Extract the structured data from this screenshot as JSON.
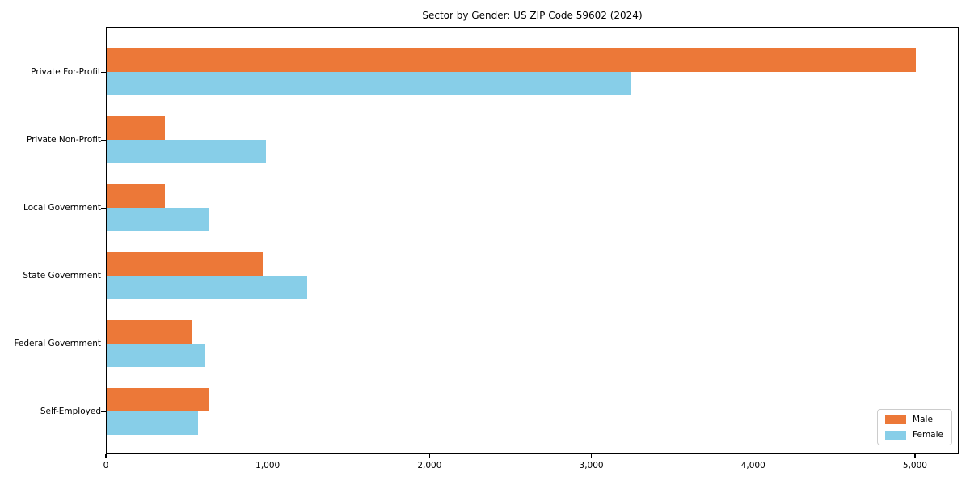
{
  "chart_data": {
    "type": "bar",
    "orientation": "horizontal",
    "title": "Sector by Gender: US ZIP Code 59602 (2024)",
    "categories": [
      "Private For-Profit",
      "Private Non-Profit",
      "Local Government",
      "State Government",
      "Federal Government",
      "Self-Employed"
    ],
    "series": [
      {
        "name": "Male",
        "color": "#EC7838",
        "values": [
          5010,
          360,
          360,
          965,
          530,
          630
        ]
      },
      {
        "name": "Female",
        "color": "#87CEE8",
        "values": [
          3250,
          985,
          630,
          1240,
          610,
          565
        ]
      }
    ],
    "xlabel": "",
    "ylabel": "",
    "xlim": [
      0,
      5270
    ],
    "xticks": [
      0,
      1000,
      2000,
      3000,
      4000,
      5000
    ],
    "xtick_labels": [
      "0",
      "1,000",
      "2,000",
      "3,000",
      "4,000",
      "5,000"
    ],
    "grid": false,
    "legend_position": "lower right",
    "legend_labels": [
      "Male",
      "Female"
    ]
  },
  "colors": {
    "male": "#EC7838",
    "female": "#87CEE8",
    "axis": "#000000",
    "legend_border": "#cccccc",
    "background": "#ffffff"
  }
}
